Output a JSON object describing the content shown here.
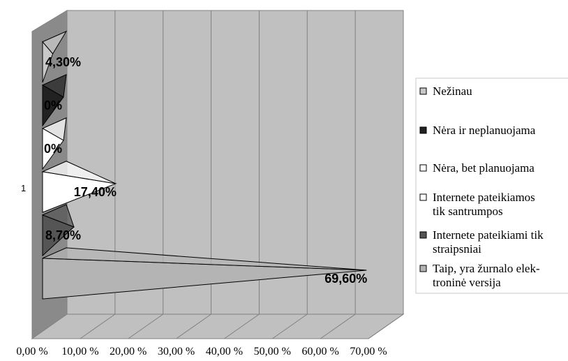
{
  "chart_data": {
    "type": "bar",
    "orientation": "horizontal",
    "style": "3d-cone",
    "categories": [
      "1"
    ],
    "xlim": [
      0,
      70
    ],
    "x_ticks": [
      "0,00 %",
      "10,00 %",
      "20,00 %",
      "30,00 %",
      "40,00 %",
      "50,00 %",
      "60,00 %",
      "70,00 %"
    ],
    "grid": true,
    "legend_position": "right",
    "series": [
      {
        "name": "Taip, yra žurnalo elek-\ntroninė versija",
        "value": 69.6,
        "label": "69,60%",
        "color": "#b4b4b4"
      },
      {
        "name": "Internete pateikiami tik\nstraipsniai",
        "value": 8.7,
        "label": "8,70%",
        "color": "#555555"
      },
      {
        "name": "Internete pateikiamos\ntik santrumpos",
        "value": 17.4,
        "label": "17,40%",
        "color": "#ffffff"
      },
      {
        "name": "Nėra, bet planuojama",
        "value": 0,
        "label": "0%",
        "color": "#ffffff"
      },
      {
        "name": "Nėra ir neplanuojama",
        "value": 0,
        "label": "0%",
        "color": "#222222"
      },
      {
        "name": "Nežinau",
        "value": 4.3,
        "label": "4,30%",
        "color": "#c8c8c8"
      }
    ]
  }
}
